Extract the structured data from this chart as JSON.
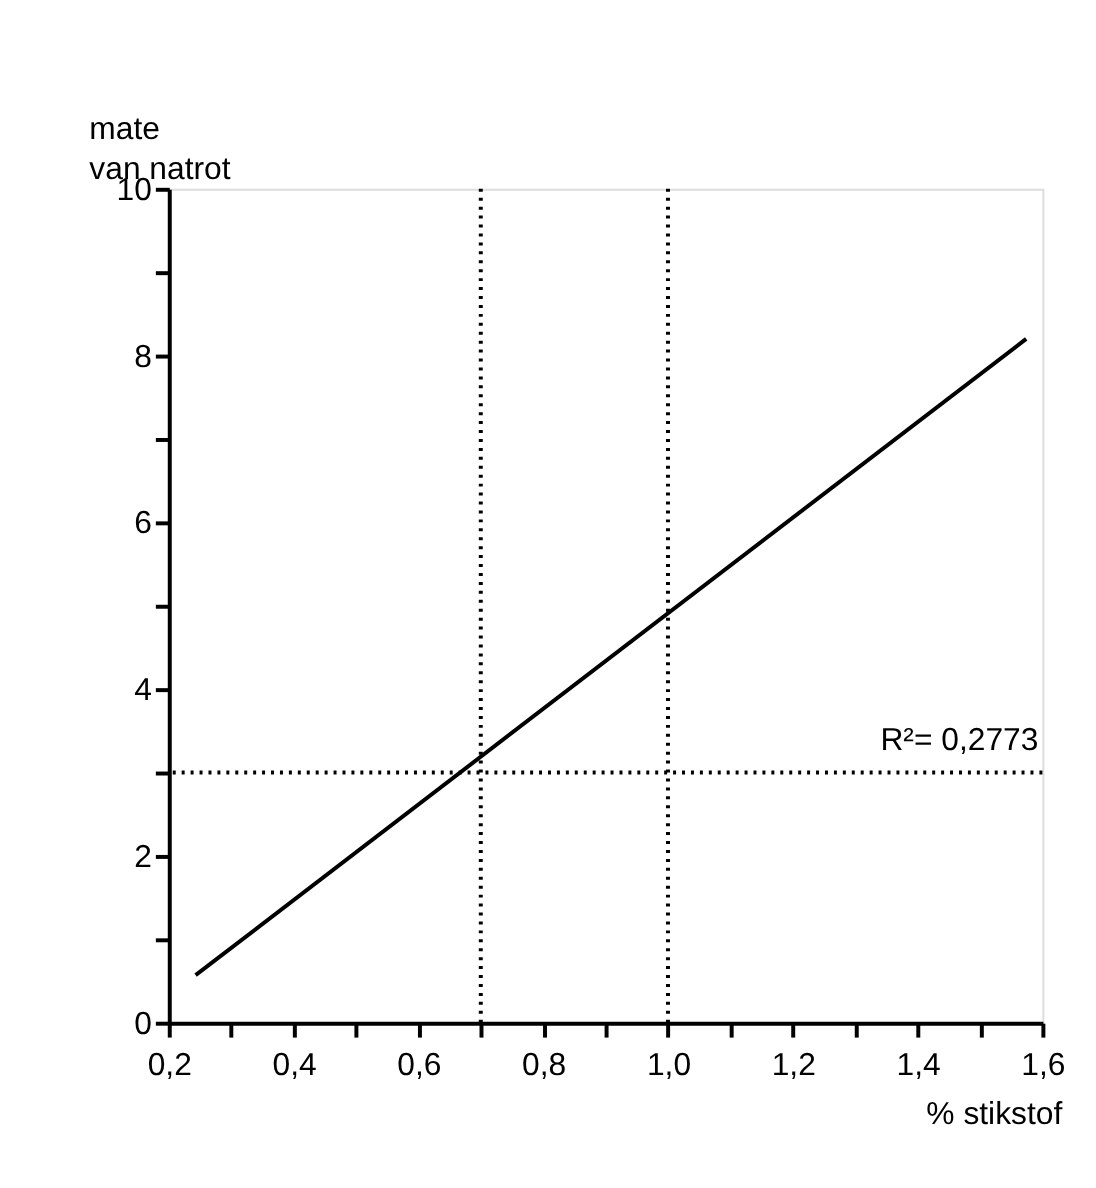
{
  "chart_data": {
    "type": "line",
    "ylabel": "mate\nvan natrot",
    "xlabel": "% stikstof",
    "series": [
      {
        "color": "#000000",
        "x": [
          0.243,
          1.574
        ],
        "values": [
          0.57,
          8.2
        ]
      }
    ],
    "xlim": [
      0.2,
      1.6
    ],
    "xticks": [
      {
        "value": 0.2,
        "label": "0,2"
      },
      {
        "value": 0.3,
        "label": null
      },
      {
        "value": 0.4,
        "label": "0,4"
      },
      {
        "value": 0.5,
        "label": null
      },
      {
        "value": 0.6,
        "label": "0,6"
      },
      {
        "value": 0.7,
        "label": null
      },
      {
        "value": 0.8,
        "label": "0,8"
      },
      {
        "value": 0.9,
        "label": null
      },
      {
        "value": 1.0,
        "label": "1,0"
      },
      {
        "value": 1.1,
        "label": null
      },
      {
        "value": 1.2,
        "label": "1,2"
      },
      {
        "value": 1.3,
        "label": null
      },
      {
        "value": 1.4,
        "label": "1,4"
      },
      {
        "value": 1.5,
        "label": null
      },
      {
        "value": 1.6,
        "label": "1,6"
      }
    ],
    "ylim": [
      0,
      10
    ],
    "yticks": [
      0,
      {
        "value": 1,
        "label": null
      },
      2,
      {
        "value": 3,
        "label": null
      },
      4,
      {
        "value": 5,
        "label": null
      },
      6,
      {
        "value": 7,
        "label": null
      },
      8,
      {
        "value": 9,
        "label": null
      },
      10
    ],
    "ref_lines": [
      {
        "axis": "x",
        "value": 0.7,
        "line_style": "dotted",
        "color": "#000000"
      },
      {
        "axis": "x",
        "value": 1.0,
        "line_style": "dotted",
        "color": "#000000"
      },
      {
        "axis": "y",
        "value": 3,
        "line_style": "dotted",
        "color": "#000000"
      }
    ],
    "annotations": [
      "R²= 0,2773"
    ],
    "grid": false,
    "marker": "none",
    "line_style": "solid"
  }
}
